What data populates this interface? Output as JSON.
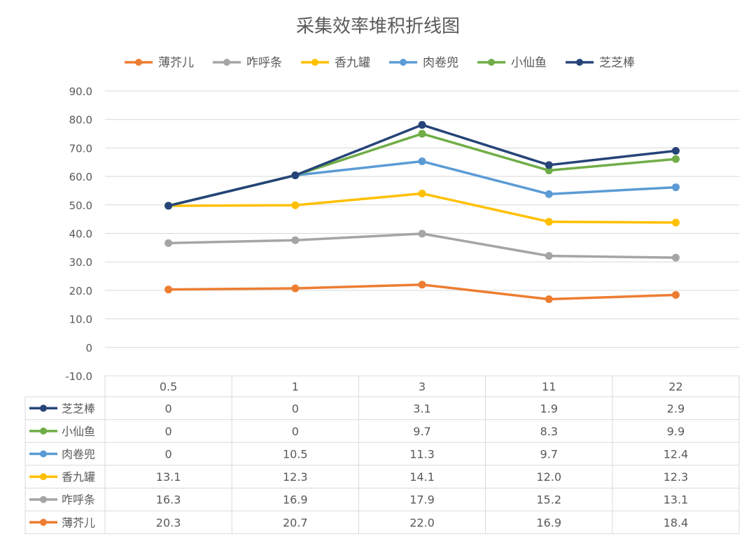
{
  "chart_data": {
    "type": "line",
    "stacked": true,
    "title": "采集效率堆积折线图",
    "xlabel": "",
    "ylabel": "",
    "ylim": [
      -10,
      90
    ],
    "yticks": [
      -10,
      0,
      10,
      20,
      30,
      40,
      50,
      60,
      70,
      80,
      90
    ],
    "ytick_labels": [
      "-10.0",
      "0",
      "10.0",
      "20.0",
      "30.0",
      "40.0",
      "50.0",
      "60.0",
      "70.0",
      "80.0",
      "90.0"
    ],
    "grid": true,
    "legend_position": "top",
    "categories": [
      "0.5",
      "1",
      "3",
      "11",
      "22"
    ],
    "series": [
      {
        "name": "薄芥儿",
        "color": "#ED7D31",
        "values": [
          20.3,
          20.7,
          22.0,
          16.9,
          18.4
        ],
        "labels": [
          "20.3",
          "20.7",
          "22.0",
          "16.9",
          "18.4"
        ]
      },
      {
        "name": "咋呼条",
        "color": "#A5A5A5",
        "values": [
          16.3,
          16.9,
          17.9,
          15.2,
          13.1
        ],
        "labels": [
          "16.3",
          "16.9",
          "17.9",
          "15.2",
          "13.1"
        ]
      },
      {
        "name": "香九罐",
        "color": "#FFC000",
        "values": [
          13.1,
          12.3,
          14.1,
          12.0,
          12.3
        ],
        "labels": [
          "13.1",
          "12.3",
          "14.1",
          "12.0",
          "12.3"
        ]
      },
      {
        "name": "肉卷兜",
        "color": "#5B9BD5",
        "values": [
          0,
          10.5,
          11.3,
          9.7,
          12.4
        ],
        "labels": [
          "0",
          "10.5",
          "11.3",
          "9.7",
          "12.4"
        ]
      },
      {
        "name": "小仙鱼",
        "color": "#70AD47",
        "values": [
          0,
          0,
          9.7,
          8.3,
          9.9
        ],
        "labels": [
          "0",
          "0",
          "9.7",
          "8.3",
          "9.9"
        ]
      },
      {
        "name": "芝芝棒",
        "color": "#264478",
        "values": [
          0,
          0,
          3.1,
          1.9,
          2.9
        ],
        "labels": [
          "0",
          "0",
          "3.1",
          "1.9",
          "2.9"
        ]
      }
    ],
    "table_row_order": [
      "芝芝棒",
      "小仙鱼",
      "肉卷兜",
      "香九罐",
      "咋呼条",
      "薄芥儿"
    ]
  }
}
